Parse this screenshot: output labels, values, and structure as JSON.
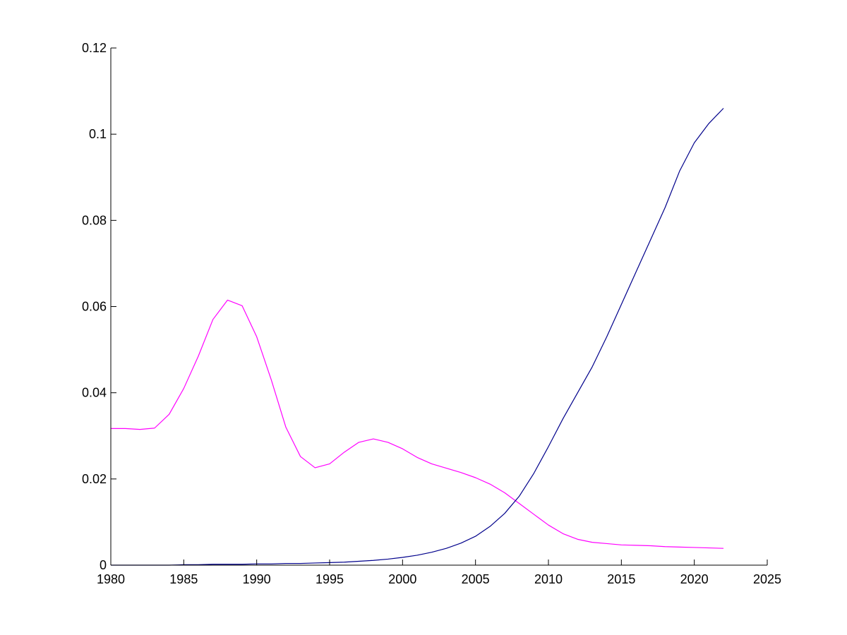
{
  "chart_data": {
    "type": "line",
    "title": "",
    "xlabel": "",
    "ylabel": "",
    "xlim": [
      1980,
      2025
    ],
    "ylim": [
      0,
      0.12
    ],
    "x_ticks": [
      1980,
      1985,
      1990,
      1995,
      2000,
      2005,
      2010,
      2015,
      2020,
      2025
    ],
    "x_tick_labels": [
      "1980",
      "1985",
      "1990",
      "1995",
      "2000",
      "2005",
      "2010",
      "2015",
      "2020",
      "2025"
    ],
    "y_ticks": [
      0,
      0.02,
      0.04,
      0.06,
      0.08,
      0.1,
      0.12
    ],
    "y_tick_labels": [
      "0",
      "0.02",
      "0.04",
      "0.06",
      "0.08",
      "0.1",
      "0.12"
    ],
    "grid": false,
    "legend": "none",
    "x": [
      1980,
      1981,
      1982,
      1983,
      1984,
      1985,
      1986,
      1987,
      1988,
      1989,
      1990,
      1991,
      1992,
      1993,
      1994,
      1995,
      1996,
      1997,
      1998,
      1999,
      2000,
      2001,
      2002,
      2003,
      2004,
      2005,
      2006,
      2007,
      2008,
      2009,
      2010,
      2011,
      2012,
      2013,
      2014,
      2015,
      2016,
      2017,
      2018,
      2019,
      2020,
      2021,
      2022
    ],
    "series": [
      {
        "color": "#ff00ff",
        "values": [
          0.0317,
          0.0317,
          0.0315,
          0.0318,
          0.035,
          0.041,
          0.0485,
          0.057,
          0.0615,
          0.0602,
          0.053,
          0.043,
          0.032,
          0.0252,
          0.0226,
          0.0235,
          0.0262,
          0.0285,
          0.0293,
          0.0285,
          0.027,
          0.025,
          0.0235,
          0.0225,
          0.0215,
          0.0203,
          0.0188,
          0.0168,
          0.0143,
          0.0118,
          0.0093,
          0.0073,
          0.006,
          0.0053,
          0.005,
          0.0047,
          0.0046,
          0.0045,
          0.0043,
          0.0042,
          0.0041,
          0.004,
          0.0039
        ]
      },
      {
        "color": "#00008b",
        "values": [
          0.0,
          0.0,
          0.0,
          0.0,
          0.0,
          0.0001,
          0.0001,
          0.0002,
          0.0002,
          0.0002,
          0.0003,
          0.0003,
          0.0004,
          0.0004,
          0.0005,
          0.0006,
          0.0007,
          0.0009,
          0.0011,
          0.0014,
          0.0018,
          0.0023,
          0.003,
          0.0039,
          0.0051,
          0.0067,
          0.009,
          0.012,
          0.016,
          0.0213,
          0.0275,
          0.034,
          0.04,
          0.046,
          0.053,
          0.0605,
          0.068,
          0.0755,
          0.083,
          0.0915,
          0.098,
          0.1025,
          0.106
        ]
      }
    ]
  }
}
